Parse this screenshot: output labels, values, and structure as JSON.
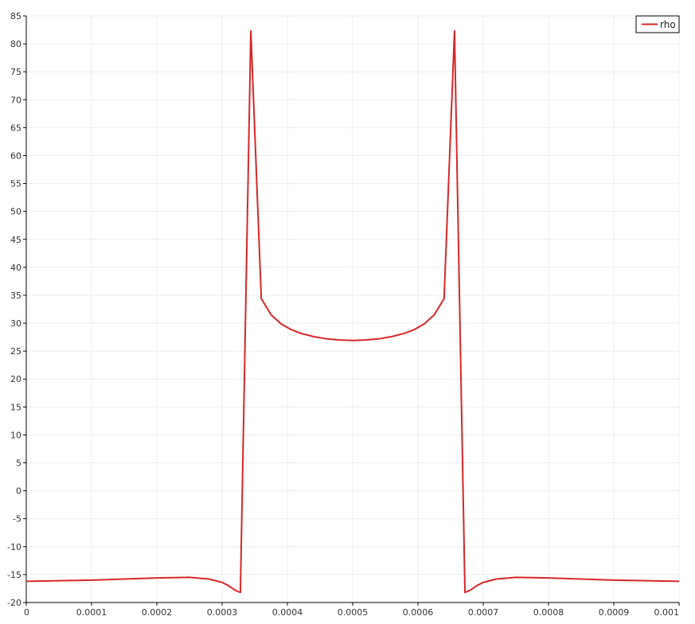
{
  "chart_data": {
    "type": "line",
    "title": "",
    "xlabel": "",
    "ylabel": "",
    "xlim": [
      0,
      0.001
    ],
    "ylim": [
      -20,
      85
    ],
    "grid": true,
    "legend_position": "top-right",
    "x_ticks": [
      "0",
      "0.0001",
      "0.0002",
      "0.0003",
      "0.0004",
      "0.0005",
      "0.0006",
      "0.0007",
      "0.0008",
      "0.0009",
      "0.001"
    ],
    "y_ticks": [
      "-20",
      "-15",
      "-10",
      "-5",
      "0",
      "5",
      "10",
      "15",
      "20",
      "25",
      "30",
      "35",
      "40",
      "45",
      "50",
      "55",
      "60",
      "65",
      "70",
      "75",
      "80",
      "85"
    ],
    "series": [
      {
        "name": "rho",
        "color": "#d62728",
        "x": [
          0,
          5e-05,
          0.0001,
          0.00015,
          0.0002,
          0.00025,
          0.00028,
          0.0003,
          0.00031,
          0.00032,
          0.000328,
          0.000344,
          0.00036,
          0.000375,
          0.00039,
          0.000405,
          0.00042,
          0.00044,
          0.00046,
          0.00048,
          0.0005,
          0.00052,
          0.00054,
          0.00056,
          0.00058,
          0.000595,
          0.00061,
          0.000625,
          0.00064,
          0.000656,
          0.000672,
          0.00068,
          0.00069,
          0.0007,
          0.00072,
          0.00075,
          0.0008,
          0.00085,
          0.0009,
          0.00095,
          0.001
        ],
        "y": [
          -16.2,
          -16.1,
          -16.0,
          -15.8,
          -15.6,
          -15.5,
          -15.8,
          -16.4,
          -17.0,
          -17.8,
          -18.2,
          82.3,
          34.4,
          31.5,
          29.9,
          28.9,
          28.2,
          27.6,
          27.2,
          27.0,
          26.9,
          27.0,
          27.2,
          27.6,
          28.2,
          28.9,
          29.9,
          31.5,
          34.4,
          82.3,
          -18.2,
          -17.8,
          -17.0,
          -16.4,
          -15.8,
          -15.5,
          -15.6,
          -15.8,
          -16.0,
          -16.1,
          -16.2
        ]
      }
    ]
  }
}
